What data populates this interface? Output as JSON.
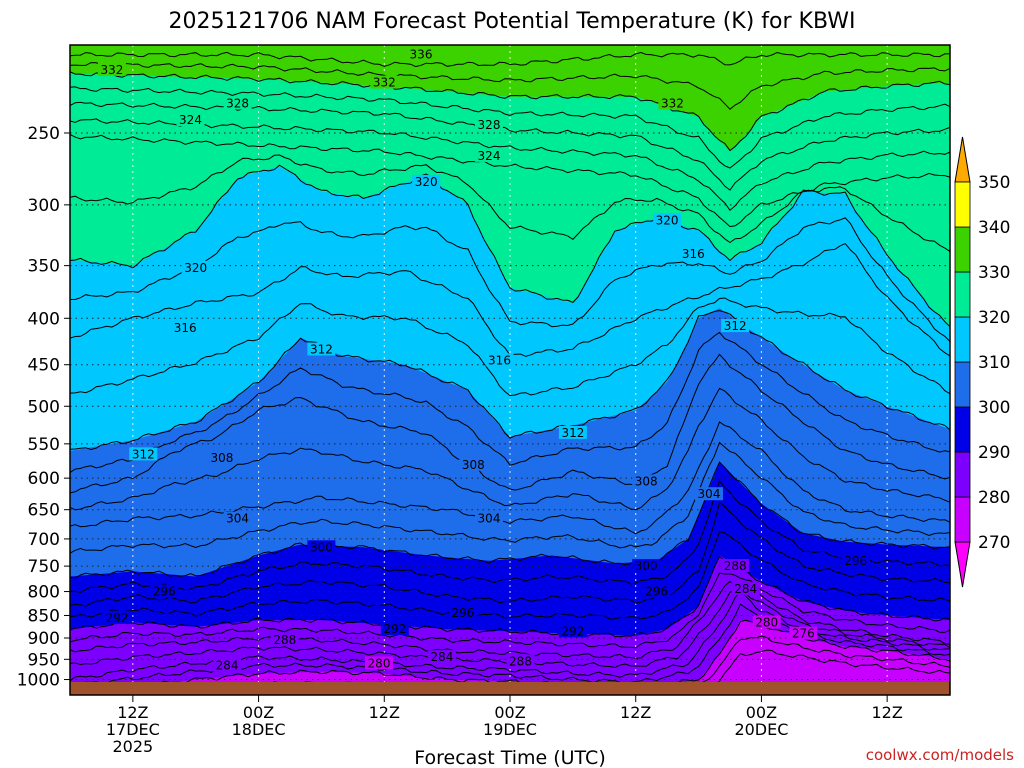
{
  "chart_data": {
    "type": "contour",
    "title": "2025121706 NAM Forecast Potential Temperature (K) for KBWI",
    "xlabel": "Forecast Time (UTC)",
    "ylabel": "",
    "credit": "coolwx.com/models",
    "y_scale": "log-pressure (hPa), inverted",
    "ylim": [
      1040,
      200
    ],
    "y_ticks": [
      250,
      300,
      350,
      400,
      450,
      500,
      550,
      600,
      650,
      700,
      750,
      800,
      850,
      900,
      950,
      1000
    ],
    "x_axis": {
      "start": "2025-12-17T06Z",
      "end": "2025-12-20T18Z",
      "ticks": [
        {
          "hour": 12,
          "lines": [
            "12Z",
            "17DEC",
            "2025"
          ]
        },
        {
          "hour": 24,
          "lines": [
            "00Z",
            "18DEC"
          ]
        },
        {
          "hour": 36,
          "lines": [
            "12Z"
          ]
        },
        {
          "hour": 48,
          "lines": [
            "00Z",
            "19DEC"
          ]
        },
        {
          "hour": 60,
          "lines": [
            "12Z"
          ]
        },
        {
          "hour": 72,
          "lines": [
            "00Z",
            "20DEC"
          ]
        },
        {
          "hour": 84,
          "lines": [
            "12Z"
          ]
        }
      ]
    },
    "colorbar": {
      "levels": [
        270,
        280,
        290,
        300,
        310,
        320,
        330,
        340,
        350
      ],
      "labels": [
        "270",
        "280",
        "290",
        "300",
        "310",
        "320",
        "330",
        "340",
        "350"
      ],
      "colors": [
        "#ff00ff",
        "#c800ff",
        "#7d00ff",
        "#0000e6",
        "#1e6eeb",
        "#00c8ff",
        "#00eb96",
        "#3cd200",
        "#ffff00",
        "#ffaa00"
      ]
    },
    "contour_interval": 2,
    "terrain_color": "#a0522d",
    "isentropes": [
      {
        "theta": 336,
        "hours": [
          6,
          24,
          36,
          48,
          60,
          66,
          69,
          72,
          78,
          84,
          90
        ],
        "pressure": [
          205,
          205,
          210,
          210,
          205,
          205,
          210,
          205,
          205,
          205,
          205
        ]
      },
      {
        "theta": 332,
        "hours": [
          6,
          24,
          36,
          48,
          60,
          66,
          69,
          72,
          78,
          84,
          90
        ],
        "pressure": [
          215,
          218,
          222,
          228,
          228,
          240,
          262,
          240,
          225,
          222,
          220
        ]
      },
      {
        "theta": 328,
        "hours": [
          6,
          24,
          36,
          48,
          60,
          66,
          69,
          72,
          78,
          84,
          90
        ],
        "pressure": [
          232,
          235,
          238,
          248,
          252,
          268,
          288,
          268,
          255,
          250,
          248
        ]
      },
      {
        "theta": 324,
        "hours": [
          6,
          24,
          36,
          48,
          60,
          66,
          69,
          72,
          78,
          84,
          90
        ],
        "pressure": [
          252,
          258,
          262,
          272,
          278,
          295,
          318,
          300,
          285,
          280,
          278
        ]
      },
      {
        "theta": 320,
        "hours": [
          6,
          12,
          18,
          22,
          26,
          30,
          34,
          40,
          44,
          48,
          54,
          58,
          62,
          66,
          69,
          72,
          76,
          80,
          84,
          90
        ],
        "pressure": [
          345,
          350,
          320,
          280,
          272,
          290,
          295,
          278,
          300,
          370,
          385,
          320,
          310,
          320,
          345,
          330,
          290,
          292,
          340,
          410
        ]
      },
      {
        "theta": 316,
        "hours": [
          6,
          12,
          18,
          24,
          28,
          32,
          38,
          44,
          48,
          54,
          60,
          64,
          68,
          72,
          76,
          80,
          84,
          90
        ],
        "pressure": [
          420,
          400,
          385,
          375,
          352,
          360,
          355,
          380,
          440,
          432,
          400,
          385,
          372,
          362,
          348,
          330,
          380,
          440
        ]
      },
      {
        "theta": 312,
        "hours": [
          6,
          12,
          18,
          24,
          28,
          32,
          38,
          44,
          48,
          54,
          60,
          63,
          66,
          68,
          72,
          76,
          80,
          84,
          90
        ],
        "pressure": [
          560,
          545,
          520,
          470,
          420,
          440,
          450,
          480,
          540,
          525,
          505,
          470,
          400,
          390,
          420,
          450,
          480,
          500,
          530
        ]
      },
      {
        "theta": 308,
        "hours": [
          6,
          12,
          16,
          20,
          24,
          28,
          34,
          40,
          44,
          48,
          54,
          60,
          63,
          66,
          68,
          72,
          76,
          80,
          84,
          90
        ],
        "pressure": [
          620,
          600,
          560,
          540,
          505,
          490,
          520,
          535,
          580,
          620,
          590,
          610,
          580,
          470,
          440,
          480,
          520,
          560,
          580,
          600
        ]
      },
      {
        "theta": 304,
        "hours": [
          6,
          12,
          18,
          24,
          30,
          36,
          42,
          48,
          54,
          60,
          62,
          65,
          68,
          72,
          76,
          80,
          84,
          90
        ],
        "pressure": [
          680,
          665,
          660,
          645,
          630,
          640,
          650,
          670,
          660,
          690,
          670,
          620,
          520,
          560,
          620,
          650,
          660,
          670
        ]
      },
      {
        "theta": 300,
        "hours": [
          6,
          12,
          18,
          24,
          28,
          34,
          40,
          46,
          52,
          58,
          62,
          65,
          68,
          72,
          76,
          80,
          84,
          90
        ],
        "pressure": [
          770,
          760,
          770,
          730,
          710,
          715,
          730,
          740,
          730,
          745,
          740,
          700,
          575,
          640,
          690,
          705,
          710,
          715
        ]
      },
      {
        "theta": 296,
        "hours": [
          6,
          12,
          18,
          24,
          30,
          36,
          42,
          48,
          54,
          60,
          63,
          66,
          68,
          72,
          76,
          80,
          84,
          90
        ],
        "pressure": [
          830,
          810,
          820,
          790,
          780,
          790,
          810,
          820,
          810,
          820,
          810,
          760,
          640,
          700,
          750,
          765,
          775,
          780
        ]
      },
      {
        "theta": 292,
        "hours": [
          6,
          12,
          18,
          24,
          30,
          36,
          42,
          48,
          54,
          60,
          63,
          66,
          68,
          72,
          76,
          80,
          84,
          90
        ],
        "pressure": [
          880,
          865,
          875,
          860,
          860,
          870,
          880,
          885,
          890,
          895,
          880,
          830,
          730,
          780,
          820,
          840,
          850,
          860
        ]
      },
      {
        "theta": 288,
        "hours": [
          6,
          12,
          18,
          24,
          30,
          36,
          42,
          48,
          54,
          60,
          64,
          66,
          69,
          72,
          76,
          80,
          84,
          90
        ],
        "pressure": [
          930,
          915,
          910,
          900,
          905,
          915,
          930,
          935,
          940,
          945,
          920,
          860,
          780,
          810,
          860,
          880,
          895,
          910
        ]
      },
      {
        "theta": 284,
        "hours": [
          6,
          12,
          18,
          24,
          30,
          36,
          42,
          48,
          54,
          60,
          65,
          67,
          70,
          72,
          76,
          80,
          84,
          90
        ],
        "pressure": [
          1000,
          975,
          960,
          945,
          950,
          960,
          970,
          975,
          985,
          990,
          960,
          900,
          800,
          840,
          880,
          900,
          910,
          930
        ]
      },
      {
        "theta": 280,
        "hours": [
          6,
          12,
          18,
          24,
          30,
          36,
          42,
          48,
          54,
          60,
          66,
          68,
          70,
          72,
          76,
          80,
          84,
          90
        ],
        "pressure": [
          1030,
          1020,
          1000,
          985,
          980,
          985,
          1000,
          1005,
          1015,
          1025,
          1000,
          940,
          860,
          870,
          900,
          920,
          930,
          950
        ]
      },
      {
        "theta": 276,
        "hours": [
          6,
          60,
          66,
          68,
          70,
          72,
          76,
          80,
          84,
          90
        ],
        "pressure": [
          1040,
          1040,
          1035,
          1000,
          940,
          930,
          945,
          960,
          970,
          985
        ]
      }
    ],
    "contour_labels": [
      {
        "text": "336",
        "hour": 39.5,
        "p": 205
      },
      {
        "text": "332",
        "hour": 10,
        "p": 213
      },
      {
        "text": "332",
        "hour": 36,
        "p": 220
      },
      {
        "text": "332",
        "hour": 63.5,
        "p": 232
      },
      {
        "text": "328",
        "hour": 22,
        "p": 232
      },
      {
        "text": "328",
        "hour": 46,
        "p": 245
      },
      {
        "text": "324",
        "hour": 17.5,
        "p": 242
      },
      {
        "text": "324",
        "hour": 46,
        "p": 265
      },
      {
        "text": "320",
        "hour": 40,
        "p": 283
      },
      {
        "text": "320",
        "hour": 63,
        "p": 312
      },
      {
        "text": "320",
        "hour": 18,
        "p": 352
      },
      {
        "text": "316",
        "hour": 65.5,
        "p": 340
      },
      {
        "text": "316",
        "hour": 17,
        "p": 410
      },
      {
        "text": "316",
        "hour": 47,
        "p": 445
      },
      {
        "text": "312",
        "hour": 30,
        "p": 433
      },
      {
        "text": "312",
        "hour": 69.5,
        "p": 408
      },
      {
        "text": "312",
        "hour": 54,
        "p": 535
      },
      {
        "text": "312",
        "hour": 13,
        "p": 565
      },
      {
        "text": "308",
        "hour": 20.5,
        "p": 570
      },
      {
        "text": "308",
        "hour": 44.5,
        "p": 580
      },
      {
        "text": "308",
        "hour": 61,
        "p": 605
      },
      {
        "text": "304",
        "hour": 22,
        "p": 665
      },
      {
        "text": "304",
        "hour": 46,
        "p": 665
      },
      {
        "text": "304",
        "hour": 67,
        "p": 625
      },
      {
        "text": "300",
        "hour": 30,
        "p": 715
      },
      {
        "text": "300",
        "hour": 61,
        "p": 750
      },
      {
        "text": "296",
        "hour": 15,
        "p": 800
      },
      {
        "text": "296",
        "hour": 43.5,
        "p": 845
      },
      {
        "text": "296",
        "hour": 62,
        "p": 800
      },
      {
        "text": "296",
        "hour": 81,
        "p": 740
      },
      {
        "text": "292",
        "hour": 10.5,
        "p": 855
      },
      {
        "text": "292",
        "hour": 37,
        "p": 880
      },
      {
        "text": "292",
        "hour": 54,
        "p": 885
      },
      {
        "text": "288",
        "hour": 26.5,
        "p": 905
      },
      {
        "text": "288",
        "hour": 49,
        "p": 955
      },
      {
        "text": "288",
        "hour": 69.5,
        "p": 750
      },
      {
        "text": "284",
        "hour": 21,
        "p": 965
      },
      {
        "text": "284",
        "hour": 41.5,
        "p": 945
      },
      {
        "text": "284",
        "hour": 70.5,
        "p": 795
      },
      {
        "text": "280",
        "hour": 35.5,
        "p": 960
      },
      {
        "text": "280",
        "hour": 72.5,
        "p": 865
      },
      {
        "text": "276",
        "hour": 76,
        "p": 890
      }
    ]
  }
}
